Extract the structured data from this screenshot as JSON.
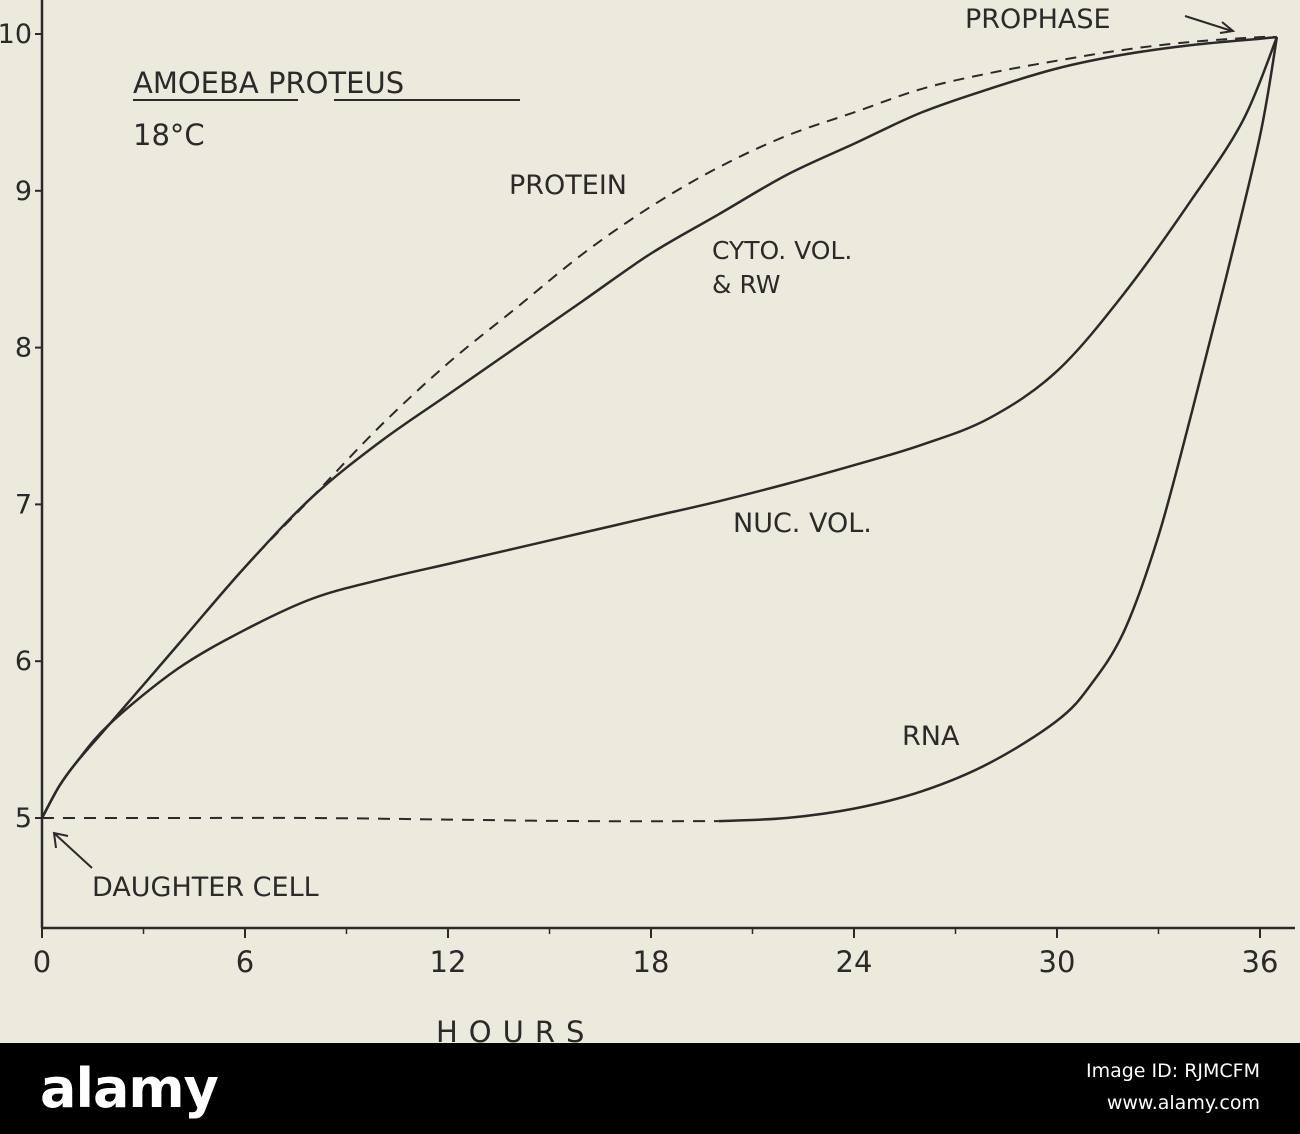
{
  "chart_data": {
    "type": "line",
    "title": "AMOEBA PROTEUS",
    "subtitle": "18°C",
    "xlabel": "HOURS",
    "ylabel": "",
    "xlim": [
      0,
      37
    ],
    "ylim": [
      4.6,
      10.1
    ],
    "x_ticks": [
      0,
      6,
      12,
      18,
      24,
      30,
      36
    ],
    "x_tick_labels": [
      "0",
      "6",
      "12",
      "18",
      "24",
      "30",
      "36"
    ],
    "y_ticks": [
      5,
      6,
      7,
      8,
      9,
      10
    ],
    "y_tick_labels": [
      "5",
      "6",
      "7",
      "8",
      "9",
      "10"
    ],
    "grid": false,
    "legend": "none",
    "series": [
      {
        "name": "PROTEIN",
        "style": "dashed",
        "x": [
          0,
          0.5,
          1,
          2,
          4,
          6,
          8,
          10,
          12,
          14,
          16,
          18,
          20,
          22,
          24,
          26,
          28,
          30,
          32,
          34,
          36,
          36.5
        ],
        "y": [
          5.0,
          5.2,
          5.35,
          5.6,
          6.1,
          6.6,
          7.05,
          7.5,
          7.9,
          8.25,
          8.6,
          8.9,
          9.15,
          9.35,
          9.5,
          9.65,
          9.75,
          9.83,
          9.9,
          9.95,
          9.98,
          9.98
        ]
      },
      {
        "name": "CYTO. VOL. & RW",
        "style": "solid",
        "x": [
          0,
          0.5,
          1,
          2,
          4,
          6,
          8,
          10,
          12,
          14,
          16,
          18,
          20,
          22,
          24,
          26,
          28,
          30,
          32,
          34,
          36,
          36.5
        ],
        "y": [
          5.0,
          5.2,
          5.35,
          5.6,
          6.1,
          6.6,
          7.05,
          7.4,
          7.7,
          8.0,
          8.3,
          8.6,
          8.85,
          9.1,
          9.3,
          9.5,
          9.65,
          9.78,
          9.87,
          9.93,
          9.97,
          9.98
        ]
      },
      {
        "name": "NUC. VOL.",
        "style": "solid",
        "x": [
          0,
          0.5,
          1,
          2,
          4,
          6,
          8,
          10,
          12,
          14,
          16,
          18,
          20,
          22,
          24,
          26,
          28,
          30,
          32,
          34,
          35.5,
          36.5
        ],
        "y": [
          5.0,
          5.2,
          5.35,
          5.6,
          5.95,
          6.2,
          6.4,
          6.52,
          6.62,
          6.72,
          6.82,
          6.92,
          7.02,
          7.13,
          7.25,
          7.38,
          7.55,
          7.85,
          8.35,
          8.95,
          9.45,
          9.98
        ]
      },
      {
        "name": "RNA",
        "style": "dashed-then-solid",
        "dashed_until_x": 20,
        "x": [
          0,
          4,
          8,
          12,
          16,
          20,
          22,
          24,
          26,
          28,
          30,
          31,
          32,
          33,
          34,
          35,
          36,
          36.5
        ],
        "y": [
          5.0,
          5.0,
          5.0,
          4.99,
          4.98,
          4.98,
          5.0,
          5.06,
          5.17,
          5.35,
          5.62,
          5.85,
          6.2,
          6.8,
          7.6,
          8.45,
          9.35,
          9.98
        ]
      }
    ],
    "annotations": [
      {
        "name": "prophase",
        "text": "PROPHASE",
        "x": 36.5,
        "y": 9.98
      },
      {
        "name": "daughter-cell",
        "text": "DAUGHTER CELL",
        "x": 0,
        "y": 5.0
      },
      {
        "name": "protein",
        "text": "PROTEIN"
      },
      {
        "name": "cyto-vol-1",
        "text": "CYTO. VOL."
      },
      {
        "name": "cyto-vol-2",
        "text": "& RW"
      },
      {
        "name": "nuc-vol",
        "text": "NUC. VOL."
      },
      {
        "name": "rna",
        "text": "RNA"
      }
    ]
  },
  "footer": {
    "brand": "alamy",
    "image_id": "Image ID: RJMCFM",
    "url": "www.alamy.com"
  }
}
